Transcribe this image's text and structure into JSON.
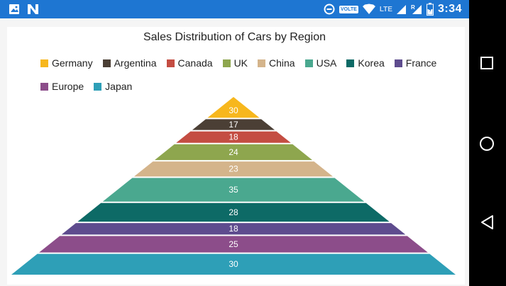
{
  "status_bar": {
    "time": "3:34",
    "volte": "VOLTE",
    "lte": "LTE",
    "roaming": "R",
    "bg_color": "#1e76d2"
  },
  "nav_bar": {
    "buttons": [
      "recents",
      "home",
      "back"
    ]
  },
  "chart_data": {
    "type": "pyramid",
    "title": "Sales Distribution of Cars by Region",
    "legend_position": "top",
    "legend": [
      "Germany",
      "Argentina",
      "Canada",
      "UK",
      "China",
      "USA",
      "Korea",
      "France",
      "Europe",
      "Japan"
    ],
    "series": [
      {
        "name": "Germany",
        "value": 30,
        "color": "#f7b71d"
      },
      {
        "name": "Argentina",
        "value": 17,
        "color": "#4b3f35"
      },
      {
        "name": "Canada",
        "value": 18,
        "color": "#c44d42"
      },
      {
        "name": "UK",
        "value": 24,
        "color": "#8ea64e"
      },
      {
        "name": "China",
        "value": 23,
        "color": "#d4b48b"
      },
      {
        "name": "USA",
        "value": 35,
        "color": "#4aa88f"
      },
      {
        "name": "Korea",
        "value": 28,
        "color": "#0d6a66"
      },
      {
        "name": "France",
        "value": 18,
        "color": "#5e4c8e"
      },
      {
        "name": "Europe",
        "value": 25,
        "color": "#8c4d8a"
      },
      {
        "name": "Japan",
        "value": 30,
        "color": "#2e9fb7"
      }
    ]
  }
}
